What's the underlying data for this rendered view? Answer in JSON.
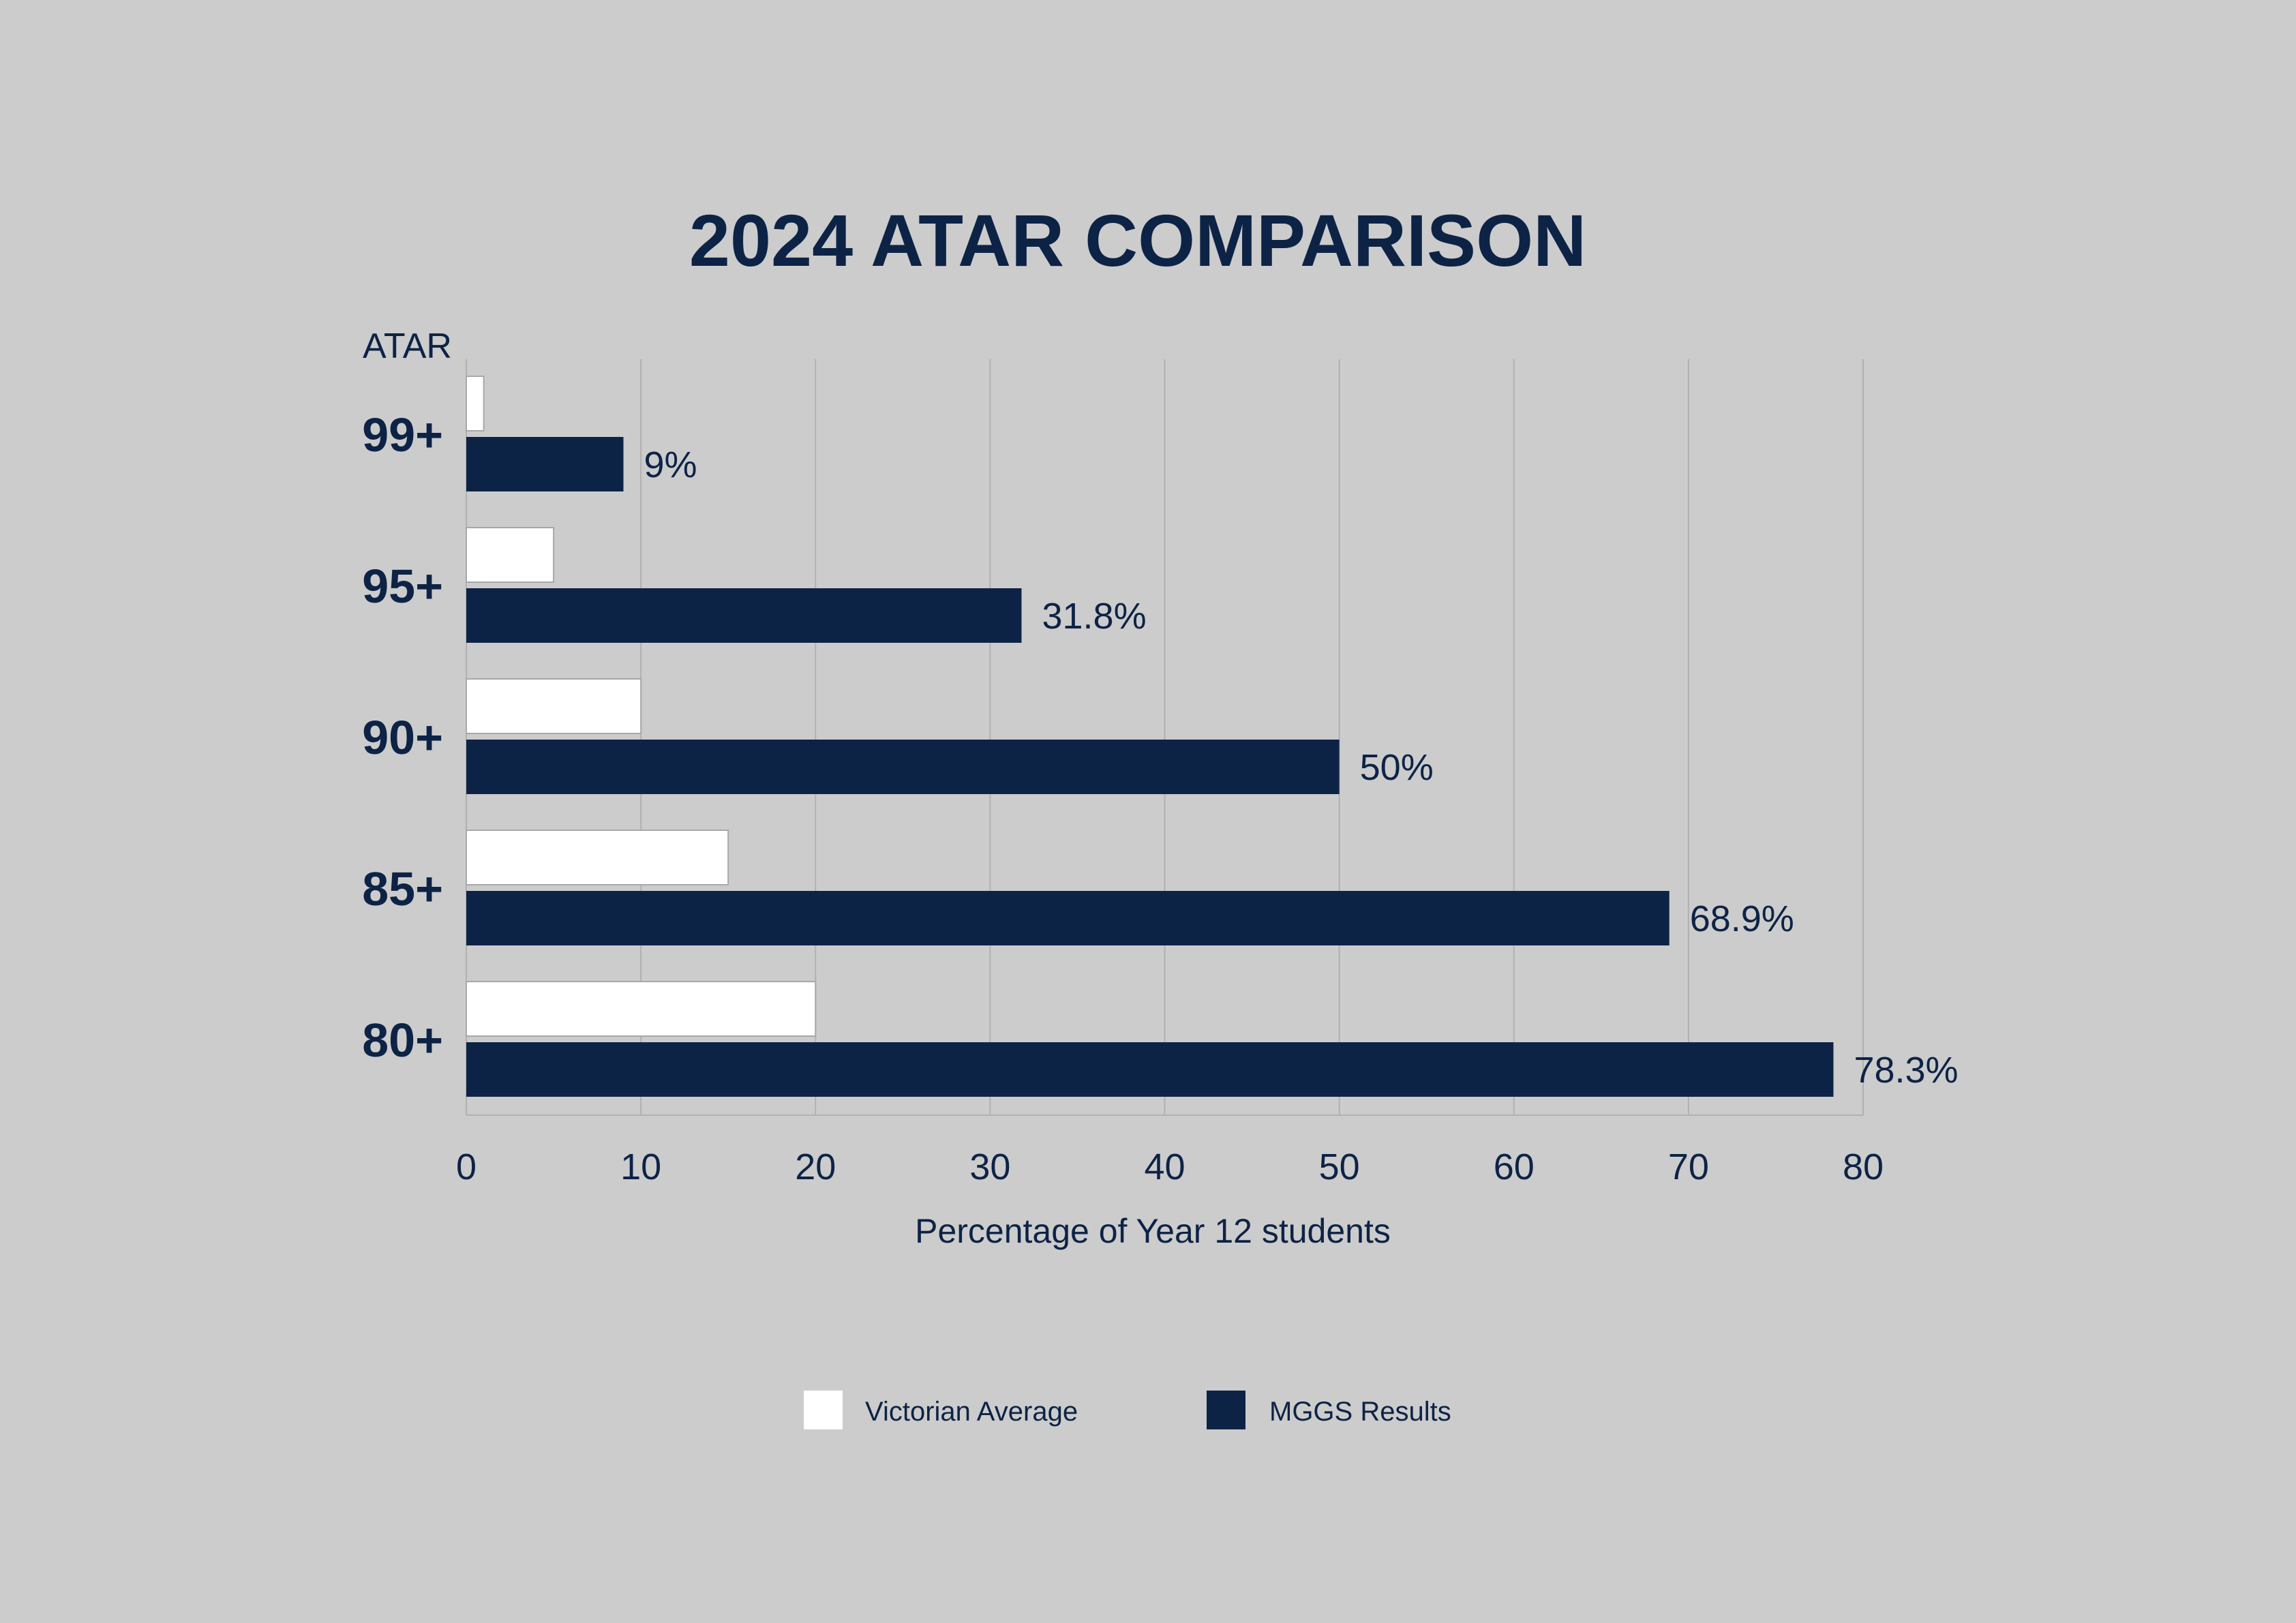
{
  "chart_data": {
    "type": "bar",
    "orientation": "horizontal",
    "title": "2024 ATAR COMPARISON",
    "ylabel": "ATAR",
    "xlabel": "Percentage of Year 12 students",
    "categories": [
      "99+",
      "95+",
      "90+",
      "85+",
      "80+"
    ],
    "series": [
      {
        "name": "Victorian Average",
        "color": "#ffffff",
        "values": [
          1,
          5,
          10,
          15,
          20
        ]
      },
      {
        "name": "MGGS Results",
        "color": "#0d2346",
        "values": [
          9,
          31.8,
          50,
          68.9,
          78.3
        ]
      }
    ],
    "data_labels": [
      "9%",
      "31.8%",
      "50%",
      "68.9%",
      "78.3%"
    ],
    "xlim": [
      0,
      80
    ],
    "x_ticks": [
      "0",
      "10",
      "20",
      "30",
      "40",
      "50",
      "60",
      "70",
      "80"
    ],
    "grid": "vertical",
    "legend_position": "bottom"
  }
}
